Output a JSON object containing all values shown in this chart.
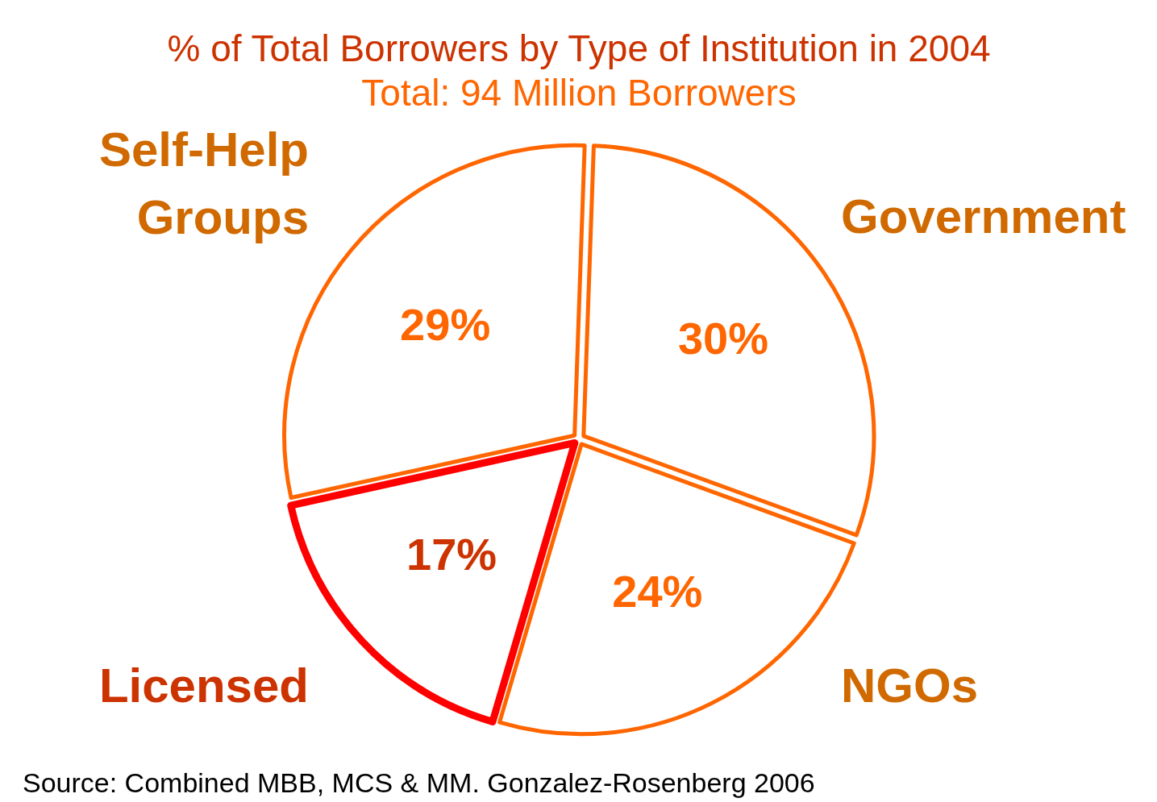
{
  "chart_data": {
    "type": "pie",
    "title": "% of Total Borrowers by Type of Institution in 2004",
    "subtitle": "Total: 94 Million Borrowers",
    "categories": [
      "Government",
      "NGOs",
      "Licensed",
      "Self-Help Groups"
    ],
    "values": [
      30,
      24,
      17,
      29
    ],
    "colors": [
      "#ff6600",
      "#ff6600",
      "#ff0000",
      "#ff6600"
    ],
    "value_labels": [
      "30%",
      "24%",
      "17%",
      "29%"
    ],
    "annotations": [
      "Source: Combined MBB, MCS & MM. Gonzalez-Rosenberg 2006"
    ],
    "legend": false
  }
}
